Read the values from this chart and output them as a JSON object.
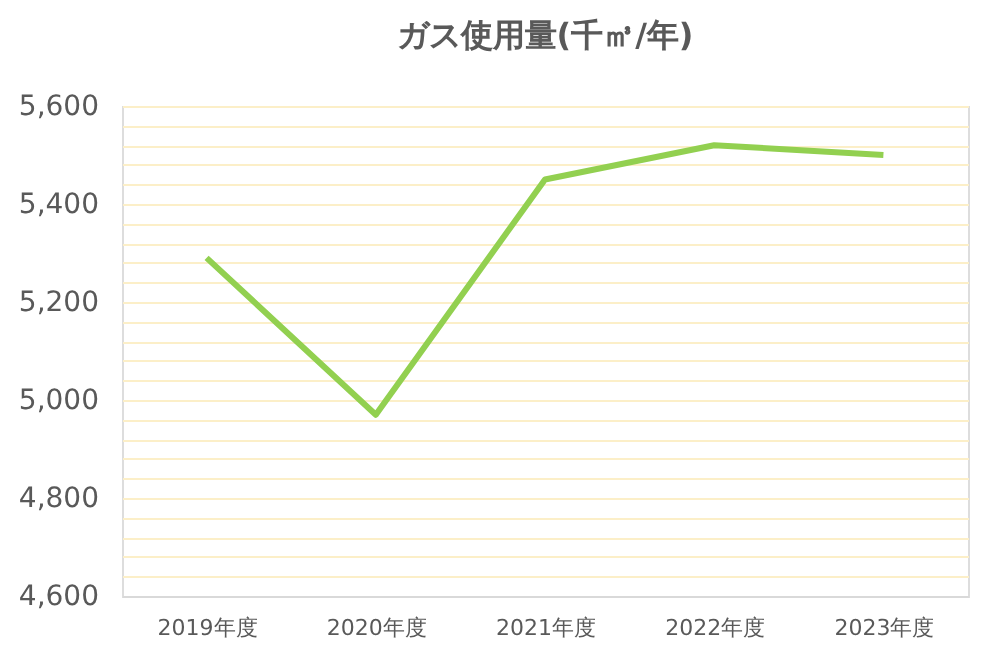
{
  "chart_data": {
    "type": "line",
    "title": "ガス使用量(千㎥/年)",
    "categories": [
      "2019年度",
      "2020年度",
      "2021年度",
      "2022年度",
      "2023年度"
    ],
    "series": [
      {
        "color": "#92d050",
        "values": [
          5290,
          4970,
          5450,
          5520,
          5500
        ]
      }
    ],
    "ylim": [
      4600,
      5600
    ],
    "yticks": [
      {
        "value": 4600,
        "label": "4,600"
      },
      {
        "value": 4640,
        "label": null
      },
      {
        "value": 4680,
        "label": null
      },
      {
        "value": 4720,
        "label": null
      },
      {
        "value": 4760,
        "label": null
      },
      {
        "value": 4800,
        "label": "4,800"
      },
      {
        "value": 4840,
        "label": null
      },
      {
        "value": 4880,
        "label": null
      },
      {
        "value": 4920,
        "label": null
      },
      {
        "value": 4960,
        "label": null
      },
      {
        "value": 5000,
        "label": "5,000"
      },
      {
        "value": 5040,
        "label": null
      },
      {
        "value": 5080,
        "label": null
      },
      {
        "value": 5120,
        "label": null
      },
      {
        "value": 5160,
        "label": null
      },
      {
        "value": 5200,
        "label": "5,200"
      },
      {
        "value": 5240,
        "label": null
      },
      {
        "value": 5280,
        "label": null
      },
      {
        "value": 5320,
        "label": null
      },
      {
        "value": 5360,
        "label": null
      },
      {
        "value": 5400,
        "label": "5,400"
      },
      {
        "value": 5440,
        "label": null
      },
      {
        "value": 5480,
        "label": null
      },
      {
        "value": 5520,
        "label": null
      },
      {
        "value": 5560,
        "label": null
      },
      {
        "value": 5600,
        "label": "5,600"
      }
    ],
    "grid": "y",
    "legend": false,
    "marker": "none",
    "line_style": "solid"
  }
}
